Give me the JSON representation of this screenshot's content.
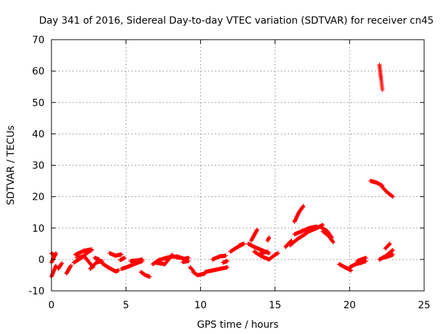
{
  "chart_data": {
    "type": "scatter",
    "title": "Day 341 of 2016, Sidereal Day-to-day VTEC variation (SDTVAR) for receiver cn45",
    "xlabel": "GPS time / hours",
    "ylabel": "SDTVAR / TECUs",
    "xlim": [
      0,
      25
    ],
    "ylim": [
      -10,
      70
    ],
    "xticks": [
      0,
      5,
      10,
      15,
      20,
      25
    ],
    "yticks": [
      -10,
      0,
      10,
      20,
      30,
      40,
      50,
      60,
      70
    ],
    "grid": true,
    "marker": "plus",
    "color": "#ff0000",
    "segments": [
      {
        "x": [
          0.0,
          0.3
        ],
        "y": [
          -5.5,
          -2.0
        ]
      },
      {
        "x": [
          0.0,
          0.3
        ],
        "y": [
          -1.0,
          2.0
        ]
      },
      {
        "x": [
          0.0,
          0.25
        ],
        "y": [
          2.0,
          1.2
        ]
      },
      {
        "x": [
          0.45,
          0.7
        ],
        "y": [
          -3.0,
          -1.2
        ]
      },
      {
        "x": [
          1.0,
          1.3
        ],
        "y": [
          -4.5,
          -2.0
        ]
      },
      {
        "x": [
          1.5,
          2.0,
          2.5,
          2.7
        ],
        "y": [
          -1.0,
          0.5,
          2.5,
          3.0
        ]
      },
      {
        "x": [
          1.6,
          2.2,
          2.7
        ],
        "y": [
          1.5,
          2.8,
          3.2
        ]
      },
      {
        "x": [
          1.7,
          2.2,
          2.8
        ],
        "y": [
          0.5,
          1.0,
          -2.5
        ]
      },
      {
        "x": [
          2.6,
          3.0,
          3.4
        ],
        "y": [
          -3.0,
          -1.0,
          -0.5
        ]
      },
      {
        "x": [
          2.9,
          3.2
        ],
        "y": [
          0.5,
          0.0
        ]
      },
      {
        "x": [
          3.4,
          3.8,
          4.3,
          4.5
        ],
        "y": [
          -1.2,
          -2.5,
          -3.8,
          -3.5
        ]
      },
      {
        "x": [
          3.9,
          4.3,
          4.7
        ],
        "y": [
          2.0,
          1.2,
          1.6
        ]
      },
      {
        "x": [
          4.6,
          4.9
        ],
        "y": [
          -0.2,
          0.5
        ]
      },
      {
        "x": [
          4.7,
          5.2,
          5.7,
          6.1
        ],
        "y": [
          -3.0,
          -2.2,
          -1.2,
          -0.5
        ]
      },
      {
        "x": [
          5.3,
          5.8,
          6.1
        ],
        "y": [
          -0.5,
          -0.3,
          0.0
        ]
      },
      {
        "x": [
          6.0,
          6.3,
          6.6
        ],
        "y": [
          -4.0,
          -5.0,
          -5.5
        ]
      },
      {
        "x": [
          6.8,
          7.2,
          7.7,
          8.2,
          8.6
        ],
        "y": [
          -1.5,
          -0.2,
          0.5,
          1.0,
          0.5
        ]
      },
      {
        "x": [
          7.0,
          7.6,
          8.1
        ],
        "y": [
          -1.0,
          -1.5,
          1.5
        ]
      },
      {
        "x": [
          8.4,
          8.9,
          9.2
        ],
        "y": [
          1.0,
          0.2,
          0.5
        ]
      },
      {
        "x": [
          8.8,
          9.2
        ],
        "y": [
          -0.8,
          -0.5
        ]
      },
      {
        "x": [
          9.3,
          9.5
        ],
        "y": [
          -2.5,
          -3.5
        ]
      },
      {
        "x": [
          9.5,
          9.8,
          10.3
        ],
        "y": [
          -4.0,
          -5.0,
          -4.5
        ]
      },
      {
        "x": [
          10.3,
          10.8,
          11.3,
          11.8
        ],
        "y": [
          -4.0,
          -3.5,
          -3.0,
          -2.5
        ]
      },
      {
        "x": [
          10.8,
          11.3,
          11.7
        ],
        "y": [
          0.0,
          1.0,
          1.2
        ]
      },
      {
        "x": [
          11.5,
          11.8
        ],
        "y": [
          -1.0,
          -0.5
        ]
      },
      {
        "x": [
          12.0,
          12.5,
          12.9
        ],
        "y": [
          2.5,
          4.0,
          5.0
        ]
      },
      {
        "x": [
          12.6,
          12.9
        ],
        "y": [
          4.5,
          5.0
        ]
      },
      {
        "x": [
          13.4,
          13.8
        ],
        "y": [
          6.0,
          9.5
        ]
      },
      {
        "x": [
          13.2,
          13.6,
          14.1,
          14.6
        ],
        "y": [
          5.0,
          4.0,
          3.0,
          2.0
        ]
      },
      {
        "x": [
          13.6,
          14.1,
          14.6,
          15.0
        ],
        "y": [
          2.5,
          1.0,
          0.0,
          1.5
        ]
      },
      {
        "x": [
          14.5,
          14.6
        ],
        "y": [
          6.0,
          7.0
        ]
      },
      {
        "x": [
          14.0,
          14.5
        ],
        "y": [
          2.0,
          2.5
        ]
      },
      {
        "x": [
          15.0,
          15.2
        ],
        "y": [
          1.5,
          2.0
        ]
      },
      {
        "x": [
          15.7,
          16.1
        ],
        "y": [
          4.0,
          6.0
        ]
      },
      {
        "x": [
          16.3,
          16.6,
          16.9
        ],
        "y": [
          12.0,
          15.0,
          17.0
        ]
      },
      {
        "x": [
          16.0,
          16.5,
          17.0,
          17.4
        ],
        "y": [
          4.5,
          6.5,
          8.0,
          9.5
        ]
      },
      {
        "x": [
          16.3,
          16.8,
          17.3,
          17.8
        ],
        "y": [
          8.0,
          9.0,
          10.0,
          10.5
        ]
      },
      {
        "x": [
          17.3,
          17.8,
          18.2
        ],
        "y": [
          9.0,
          10.0,
          11.0
        ]
      },
      {
        "x": [
          18.0,
          18.5,
          18.8
        ],
        "y": [
          10.5,
          9.0,
          7.0
        ]
      },
      {
        "x": [
          18.2,
          18.6,
          18.9
        ],
        "y": [
          9.0,
          7.5,
          5.5
        ]
      },
      {
        "x": [
          19.3,
          19.7,
          20.1
        ],
        "y": [
          -1.5,
          -2.5,
          -3.5
        ]
      },
      {
        "x": [
          20.0,
          20.4,
          20.8,
          21.1
        ],
        "y": [
          -2.5,
          -1.5,
          -1.0,
          -0.5
        ]
      },
      {
        "x": [
          20.5,
          20.8,
          21.1
        ],
        "y": [
          -0.5,
          0.0,
          0.5
        ]
      },
      {
        "x": [
          21.4,
          21.8,
          22.2
        ],
        "y": [
          25.0,
          24.5,
          23.5
        ]
      },
      {
        "x": [
          22.2,
          22.5,
          22.9
        ],
        "y": [
          23.0,
          21.5,
          20.0
        ]
      },
      {
        "x": [
          22.0,
          22.1,
          22.2
        ],
        "y": [
          62.0,
          58.0,
          54.0
        ]
      },
      {
        "x": [
          22.0,
          22.4,
          22.9
        ],
        "y": [
          0.0,
          1.0,
          3.0
        ]
      },
      {
        "x": [
          22.2,
          22.6,
          22.9
        ],
        "y": [
          0.5,
          1.0,
          1.5
        ]
      },
      {
        "x": [
          22.4,
          22.7
        ],
        "y": [
          3.5,
          5.0
        ]
      }
    ]
  }
}
